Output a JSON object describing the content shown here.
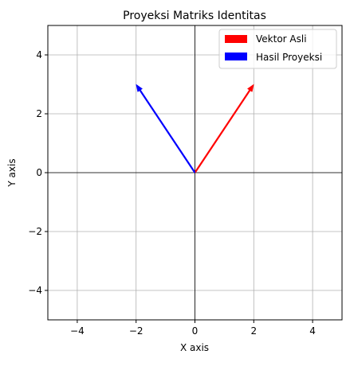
{
  "chart_data": {
    "type": "vector",
    "title": "Proyeksi Matriks Identitas",
    "xlabel": "X axis",
    "ylabel": "Y axis",
    "xlim": [
      -5,
      5
    ],
    "ylim": [
      -5,
      5
    ],
    "xticks": [
      -4,
      -2,
      0,
      2,
      4
    ],
    "yticks": [
      -4,
      -2,
      0,
      2,
      4
    ],
    "xtick_labels": [
      "−4",
      "−2",
      "0",
      "2",
      "4"
    ],
    "ytick_labels": [
      "−4",
      "−2",
      "0",
      "2",
      "4"
    ],
    "grid": true,
    "axis_lines_at_origin": true,
    "legend_position": "top-right",
    "series": [
      {
        "name": "Vektor Asli",
        "color": "#ff0000",
        "origin": [
          0,
          0
        ],
        "vector": [
          2,
          3
        ]
      },
      {
        "name": "Hasil Proyeksi",
        "color": "#0000ff",
        "origin": [
          0,
          0
        ],
        "vector": [
          -2,
          3
        ]
      }
    ]
  }
}
